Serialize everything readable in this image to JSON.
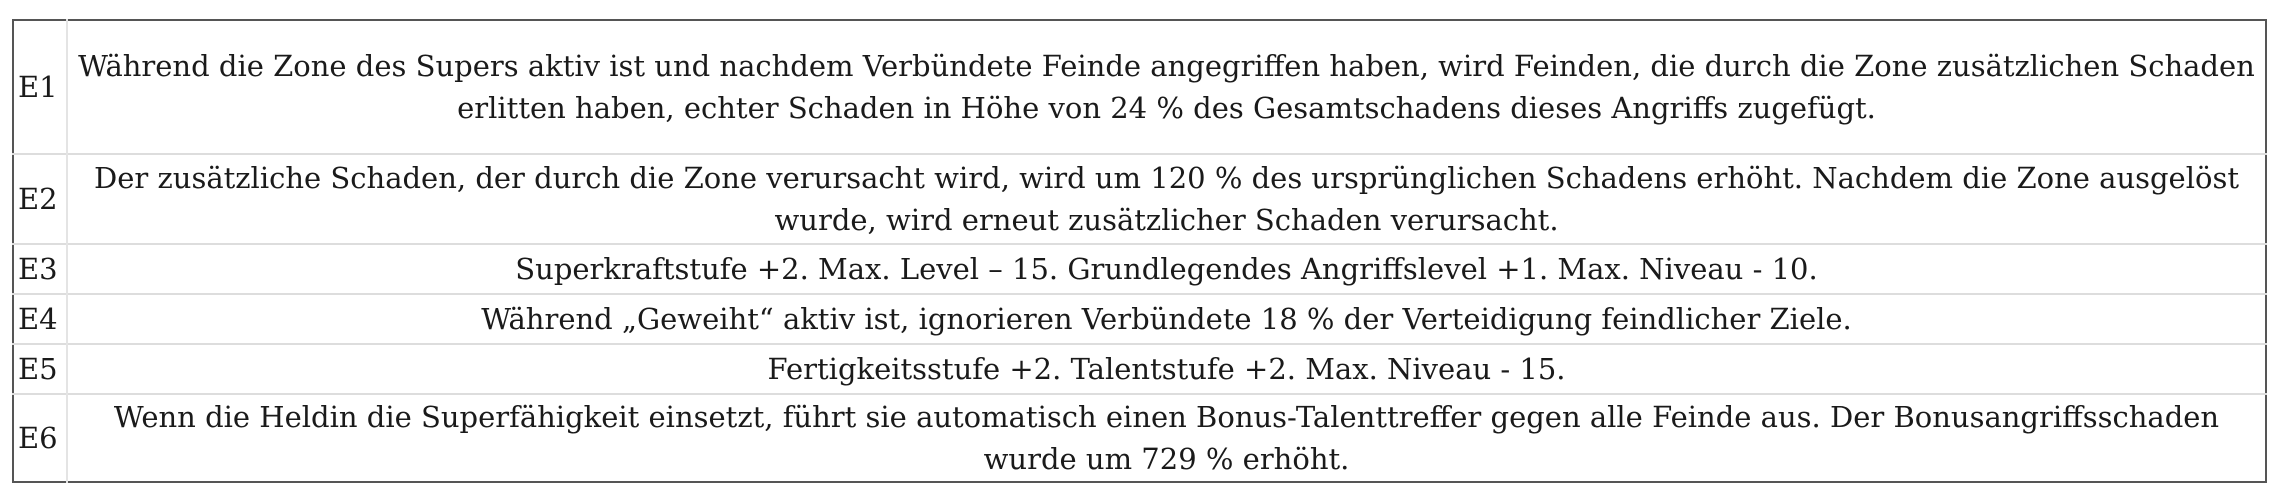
{
  "rows": [
    {
      "id": "E1",
      "text": "Während die Zone des Supers aktiv ist und nachdem Verbündete Feinde angegriffen haben, wird Feinden, die durch die Zone zusätzlichen Schaden erlitten haben, echter Schaden in Höhe von 24 % des Gesamtschadens dieses Angriffs zugefügt."
    },
    {
      "id": "E2",
      "text": "Der zusätzliche Schaden, der durch die Zone verursacht wird, wird um 120 % des ursprünglichen Schadens erhöht. Nachdem die Zone ausgelöst wurde, wird erneut zusätzlicher Schaden verursacht."
    },
    {
      "id": "E3",
      "text": "Superkraftstufe +2. Max. Level – 15. Grundlegendes Angriffslevel +1. Max. Niveau - 10."
    },
    {
      "id": "E4",
      "text": "Während „Geweiht“ aktiv ist, ignorieren Verbündete 18 % der Verteidigung feindlicher Ziele."
    },
    {
      "id": "E5",
      "text": "Fertigkeitsstufe +2. Talentstufe +2. Max. Niveau - 15."
    },
    {
      "id": "E6",
      "text": "Wenn die Heldin die Superfähigkeit einsetzt, führt sie automatisch einen Bonus-Talenttreffer gegen alle Feinde aus. Der Bonusangriffsschaden wurde um 729 % erhöht."
    }
  ]
}
